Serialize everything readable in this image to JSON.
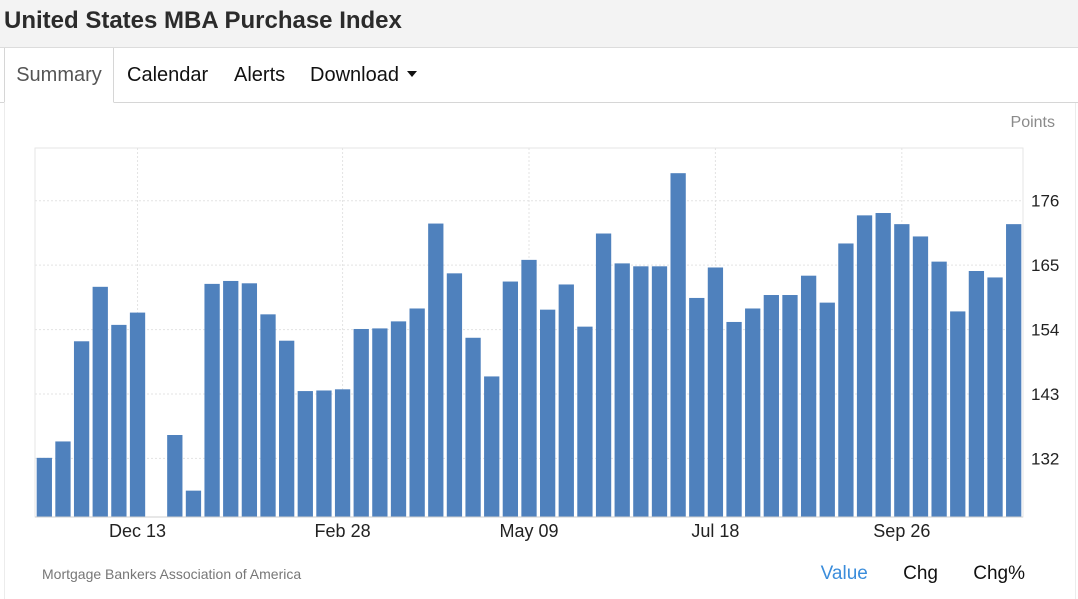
{
  "header": {
    "title": "United States MBA Purchase Index"
  },
  "tabs": [
    {
      "label": "Summary"
    },
    {
      "label": "Calendar"
    },
    {
      "label": "Alerts"
    },
    {
      "label": "Download"
    }
  ],
  "footer": {
    "source": "Mortgage Bankers Association of America",
    "toggles": [
      "Value",
      "Chg",
      "Chg%"
    ],
    "active_toggle": "Value"
  },
  "colors": {
    "bar": "#4f81bd",
    "active_toggle": "#3b8ddb"
  },
  "chart_data": {
    "type": "bar",
    "title": "United States MBA Purchase Index",
    "ylabel": "Points",
    "ylim": [
      122,
      185
    ],
    "yticks": [
      132,
      143,
      154,
      165,
      176
    ],
    "axis_side": "right",
    "grid": true,
    "xticks": [
      {
        "label": "Dec 13",
        "index": 5
      },
      {
        "label": "Feb 28",
        "index": 16
      },
      {
        "label": "May 09",
        "index": 26
      },
      {
        "label": "Jul 18",
        "index": 36
      },
      {
        "label": "Sep 26",
        "index": 46
      }
    ],
    "values": [
      132.1,
      134.9,
      152.0,
      161.3,
      154.8,
      156.9,
      null,
      136.0,
      126.5,
      161.8,
      162.3,
      161.9,
      156.6,
      152.1,
      143.5,
      143.6,
      143.8,
      154.1,
      154.2,
      155.4,
      157.6,
      172.1,
      163.6,
      152.6,
      146.0,
      162.2,
      165.9,
      157.4,
      161.7,
      154.5,
      170.4,
      165.3,
      164.8,
      164.8,
      180.7,
      159.4,
      164.6,
      155.3,
      157.6,
      159.9,
      159.9,
      163.2,
      158.6,
      168.7,
      173.5,
      173.9,
      172.0,
      169.9,
      165.6,
      157.1,
      164.0,
      162.9,
      172.0
    ]
  }
}
